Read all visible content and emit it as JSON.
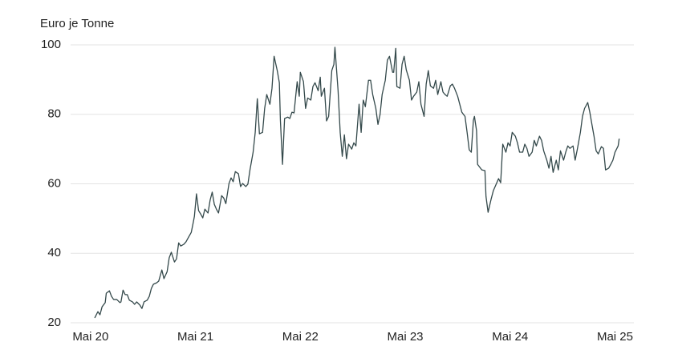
{
  "chart_data": {
    "type": "line",
    "ylabel": "Euro je Tonne",
    "xlim": [
      2020.14,
      2025.51
    ],
    "xticks": [
      {
        "value": 2020.33,
        "label": "Mai 20"
      },
      {
        "value": 2021.33,
        "label": "Mai 21"
      },
      {
        "value": 2022.33,
        "label": "Mai 22"
      },
      {
        "value": 2023.33,
        "label": "Mai 23"
      },
      {
        "value": 2024.33,
        "label": "Mai 24"
      },
      {
        "value": 2025.33,
        "label": "Mai 25"
      }
    ],
    "ylim": [
      20,
      100
    ],
    "yticks": [
      20,
      40,
      60,
      80,
      100
    ],
    "grid": true,
    "x": [
      2020.37,
      2020.4,
      2020.42,
      2020.44,
      2020.47,
      2020.48,
      2020.51,
      2020.53,
      2020.55,
      2020.58,
      2020.61,
      2020.62,
      2020.64,
      2020.66,
      2020.68,
      2020.7,
      2020.73,
      2020.75,
      2020.77,
      2020.8,
      2020.82,
      2020.84,
      2020.87,
      2020.89,
      2020.91,
      2020.93,
      2020.96,
      2020.98,
      2021.01,
      2021.03,
      2021.06,
      2021.08,
      2021.1,
      2021.13,
      2021.15,
      2021.17,
      2021.19,
      2021.22,
      2021.24,
      2021.26,
      2021.29,
      2021.31,
      2021.32,
      2021.34,
      2021.36,
      2021.38,
      2021.4,
      2021.42,
      2021.45,
      2021.47,
      2021.49,
      2021.51,
      2021.53,
      2021.55,
      2021.58,
      2021.6,
      2021.62,
      2021.65,
      2021.67,
      2021.69,
      2021.71,
      2021.74,
      2021.76,
      2021.78,
      2021.81,
      2021.83,
      2021.85,
      2021.88,
      2021.9,
      2021.92,
      2021.94,
      2021.97,
      2021.99,
      2022.01,
      2022.04,
      2022.06,
      2022.08,
      2022.11,
      2022.13,
      2022.14,
      2022.16,
      2022.18,
      2022.21,
      2022.23,
      2022.25,
      2022.27,
      2022.3,
      2022.32,
      2022.33,
      2022.36,
      2022.38,
      2022.4,
      2022.43,
      2022.45,
      2022.47,
      2022.5,
      2022.52,
      2022.53,
      2022.56,
      2022.58,
      2022.6,
      2022.63,
      2022.65,
      2022.66,
      2022.69,
      2022.71,
      2022.73,
      2022.75,
      2022.77,
      2022.79,
      2022.82,
      2022.84,
      2022.86,
      2022.89,
      2022.91,
      2022.93,
      2022.95,
      2022.98,
      2023.0,
      2023.02,
      2023.05,
      2023.07,
      2023.09,
      2023.11,
      2023.14,
      2023.16,
      2023.18,
      2023.21,
      2023.22,
      2023.24,
      2023.25,
      2023.28,
      2023.3,
      2023.32,
      2023.34,
      2023.37,
      2023.39,
      2023.41,
      2023.44,
      2023.46,
      2023.48,
      2023.51,
      2023.53,
      2023.55,
      2023.57,
      2023.6,
      2023.62,
      2023.64,
      2023.67,
      2023.69,
      2023.71,
      2023.73,
      2023.76,
      2023.78,
      2023.8,
      2023.83,
      2023.85,
      2023.87,
      2023.9,
      2023.92,
      2023.94,
      2023.96,
      2023.98,
      2023.99,
      2024.01,
      2024.02,
      2024.06,
      2024.09,
      2024.1,
      2024.12,
      2024.15,
      2024.17,
      2024.19,
      2024.22,
      2024.24,
      2024.26,
      2024.29,
      2024.31,
      2024.33,
      2024.35,
      2024.38,
      2024.4,
      2024.42,
      2024.45,
      2024.47,
      2024.49,
      2024.51,
      2024.54,
      2024.56,
      2024.58,
      2024.61,
      2024.63,
      2024.65,
      2024.68,
      2024.7,
      2024.72,
      2024.74,
      2024.77,
      2024.79,
      2024.81,
      2024.84,
      2024.86,
      2024.88,
      2024.9,
      2024.93,
      2024.95,
      2024.97,
      2025.0,
      2025.02,
      2025.04,
      2025.07,
      2025.09,
      2025.11,
      2025.13,
      2025.15,
      2025.17,
      2025.2,
      2025.22,
      2025.24,
      2025.27,
      2025.29,
      2025.31,
      2025.33,
      2025.36,
      2025.37
    ],
    "series": [
      {
        "color": "#34494b",
        "values": [
          21.4,
          23.2,
          22.3,
          24.6,
          25.8,
          28.5,
          29.2,
          27.6,
          26.7,
          26.7,
          25.8,
          26.0,
          29.4,
          28.1,
          28.1,
          26.5,
          26.0,
          25.3,
          26.0,
          25.1,
          24.1,
          26.0,
          26.5,
          27.6,
          29.9,
          31.1,
          31.5,
          32.0,
          35.2,
          32.7,
          34.7,
          38.7,
          40.3,
          37.5,
          38.4,
          43.0,
          42.1,
          42.6,
          43.3,
          44.4,
          46.0,
          49.0,
          50.6,
          57.1,
          52.3,
          51.3,
          50.2,
          52.7,
          51.6,
          55.3,
          57.6,
          54.1,
          52.7,
          51.6,
          56.6,
          55.9,
          54.3,
          60.1,
          61.7,
          60.6,
          63.5,
          62.9,
          59.2,
          60.1,
          59.2,
          59.9,
          64.0,
          69.1,
          74.8,
          84.5,
          74.4,
          74.8,
          81.7,
          85.7,
          82.9,
          87.5,
          96.7,
          92.6,
          89.1,
          78.3,
          65.6,
          78.8,
          79.2,
          78.8,
          80.6,
          80.4,
          89.4,
          85.2,
          92.1,
          89.4,
          81.7,
          84.7,
          84.1,
          88.0,
          89.1,
          86.8,
          90.7,
          85.2,
          87.5,
          78.1,
          79.4,
          92.6,
          94.4,
          99.3,
          86.8,
          74.8,
          67.9,
          74.1,
          67.2,
          71.4,
          70.0,
          71.8,
          70.9,
          82.9,
          74.8,
          84.1,
          82.2,
          89.8,
          89.8,
          85.7,
          81.7,
          77.1,
          79.9,
          85.7,
          89.8,
          95.6,
          96.7,
          92.1,
          92.1,
          99.0,
          88.0,
          87.5,
          94.4,
          96.7,
          92.8,
          89.8,
          84.1,
          85.2,
          86.4,
          89.4,
          82.9,
          79.4,
          88.7,
          92.6,
          88.2,
          87.5,
          89.8,
          85.7,
          89.4,
          86.4,
          85.7,
          85.2,
          88.2,
          88.7,
          87.5,
          85.2,
          82.9,
          80.6,
          79.4,
          74.8,
          69.8,
          69.1,
          78.3,
          79.4,
          75.3,
          65.6,
          64.0,
          63.8,
          56.4,
          51.8,
          55.7,
          58.0,
          59.4,
          61.5,
          60.3,
          71.4,
          69.1,
          71.8,
          70.9,
          74.8,
          73.7,
          71.8,
          69.1,
          69.1,
          71.4,
          70.2,
          67.9,
          69.1,
          72.5,
          70.9,
          73.7,
          72.5,
          69.5,
          66.8,
          64.5,
          67.9,
          63.3,
          66.8,
          64.0,
          69.5,
          66.8,
          69.1,
          70.9,
          70.2,
          70.9,
          66.8,
          69.8,
          74.8,
          79.4,
          81.7,
          83.4,
          80.6,
          77.1,
          73.7,
          69.5,
          68.6,
          70.7,
          70.2,
          64.0,
          64.5,
          65.6,
          66.8,
          69.1,
          70.9,
          73.0
        ]
      }
    ]
  }
}
